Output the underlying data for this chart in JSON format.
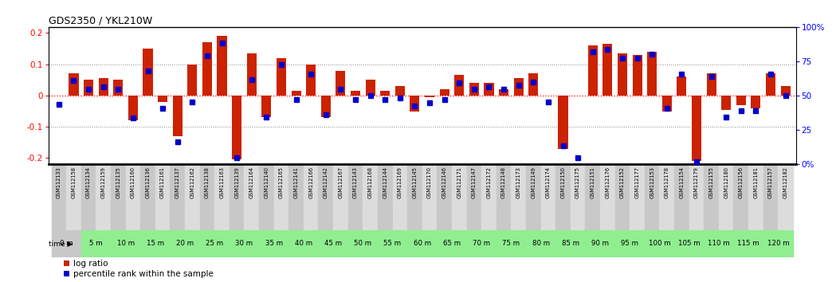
{
  "title": "GDS2350 / YKL210W",
  "samples": [
    "GSM112133",
    "GSM112158",
    "GSM112134",
    "GSM112159",
    "GSM112135",
    "GSM112160",
    "GSM112136",
    "GSM112161",
    "GSM112137",
    "GSM112162",
    "GSM112138",
    "GSM112163",
    "GSM112139",
    "GSM112164",
    "GSM112140",
    "GSM112165",
    "GSM112141",
    "GSM112166",
    "GSM112142",
    "GSM112167",
    "GSM112143",
    "GSM112168",
    "GSM112144",
    "GSM112169",
    "GSM112145",
    "GSM112170",
    "GSM112146",
    "GSM112171",
    "GSM112147",
    "GSM112172",
    "GSM112148",
    "GSM112173",
    "GSM112149",
    "GSM112174",
    "GSM112150",
    "GSM112175",
    "GSM112151",
    "GSM112176",
    "GSM112152",
    "GSM112177",
    "GSM112153",
    "GSM112178",
    "GSM112154",
    "GSM112179",
    "GSM112155",
    "GSM112180",
    "GSM112156",
    "GSM112181",
    "GSM112157",
    "GSM112182"
  ],
  "log_ratio": [
    0.0,
    0.07,
    0.05,
    0.055,
    0.05,
    -0.08,
    0.15,
    -0.02,
    -0.13,
    0.1,
    0.17,
    0.19,
    -0.205,
    0.135,
    -0.07,
    0.12,
    0.015,
    0.1,
    -0.07,
    0.08,
    0.015,
    0.05,
    0.015,
    0.03,
    -0.05,
    -0.005,
    0.02,
    0.065,
    0.04,
    0.04,
    0.02,
    0.055,
    0.07,
    0.0,
    -0.17,
    0.0,
    0.16,
    0.165,
    0.135,
    0.13,
    0.14,
    -0.05,
    0.06,
    -0.21,
    0.07,
    -0.045,
    -0.03,
    -0.04,
    0.07,
    0.03
  ],
  "percentile": [
    48,
    67,
    60,
    62,
    60,
    37,
    75,
    45,
    18,
    50,
    87,
    97,
    5,
    68,
    38,
    80,
    52,
    72,
    40,
    60,
    52,
    55,
    52,
    53,
    47,
    49,
    52,
    65,
    60,
    62,
    60,
    63,
    66,
    50,
    15,
    5,
    90,
    92,
    85,
    85,
    88,
    45,
    72,
    2,
    70,
    38,
    43,
    43,
    72,
    55
  ],
  "time_labels": [
    "0 m",
    "5 m",
    "10 m",
    "15 m",
    "20 m",
    "25 m",
    "30 m",
    "35 m",
    "40 m",
    "45 m",
    "50 m",
    "55 m",
    "60 m",
    "65 m",
    "70 m",
    "75 m",
    "80 m",
    "85 m",
    "90 m",
    "95 m",
    "100 m",
    "105 m",
    "110 m",
    "115 m",
    "120 m"
  ],
  "time_positions": [
    0.5,
    2.5,
    4.5,
    6.5,
    8.5,
    10.5,
    12.5,
    14.5,
    16.5,
    18.5,
    20.5,
    22.5,
    24.5,
    26.5,
    28.5,
    30.5,
    32.5,
    34.5,
    36.5,
    38.5,
    40.5,
    42.5,
    44.5,
    46.5,
    48.5
  ],
  "bar_color": "#CC2200",
  "dot_color": "#0000CC",
  "ylim": [
    -0.22,
    0.22
  ],
  "y2lim": [
    0,
    110
  ],
  "yticks": [
    -0.2,
    -0.1,
    0.0,
    0.1,
    0.2
  ],
  "y2ticks": [
    0,
    27.5,
    55.0,
    82.5,
    110.0
  ],
  "y2ticklabels": [
    "0%",
    "25",
    "50",
    "75",
    "100%"
  ],
  "col_colors": [
    "#C8C8C8",
    "#DCDCDC"
  ],
  "time_bg_color": "#90EE90",
  "time_first_bg": "#C8C8C8",
  "legend_items": [
    "log ratio",
    "percentile rank within the sample"
  ]
}
